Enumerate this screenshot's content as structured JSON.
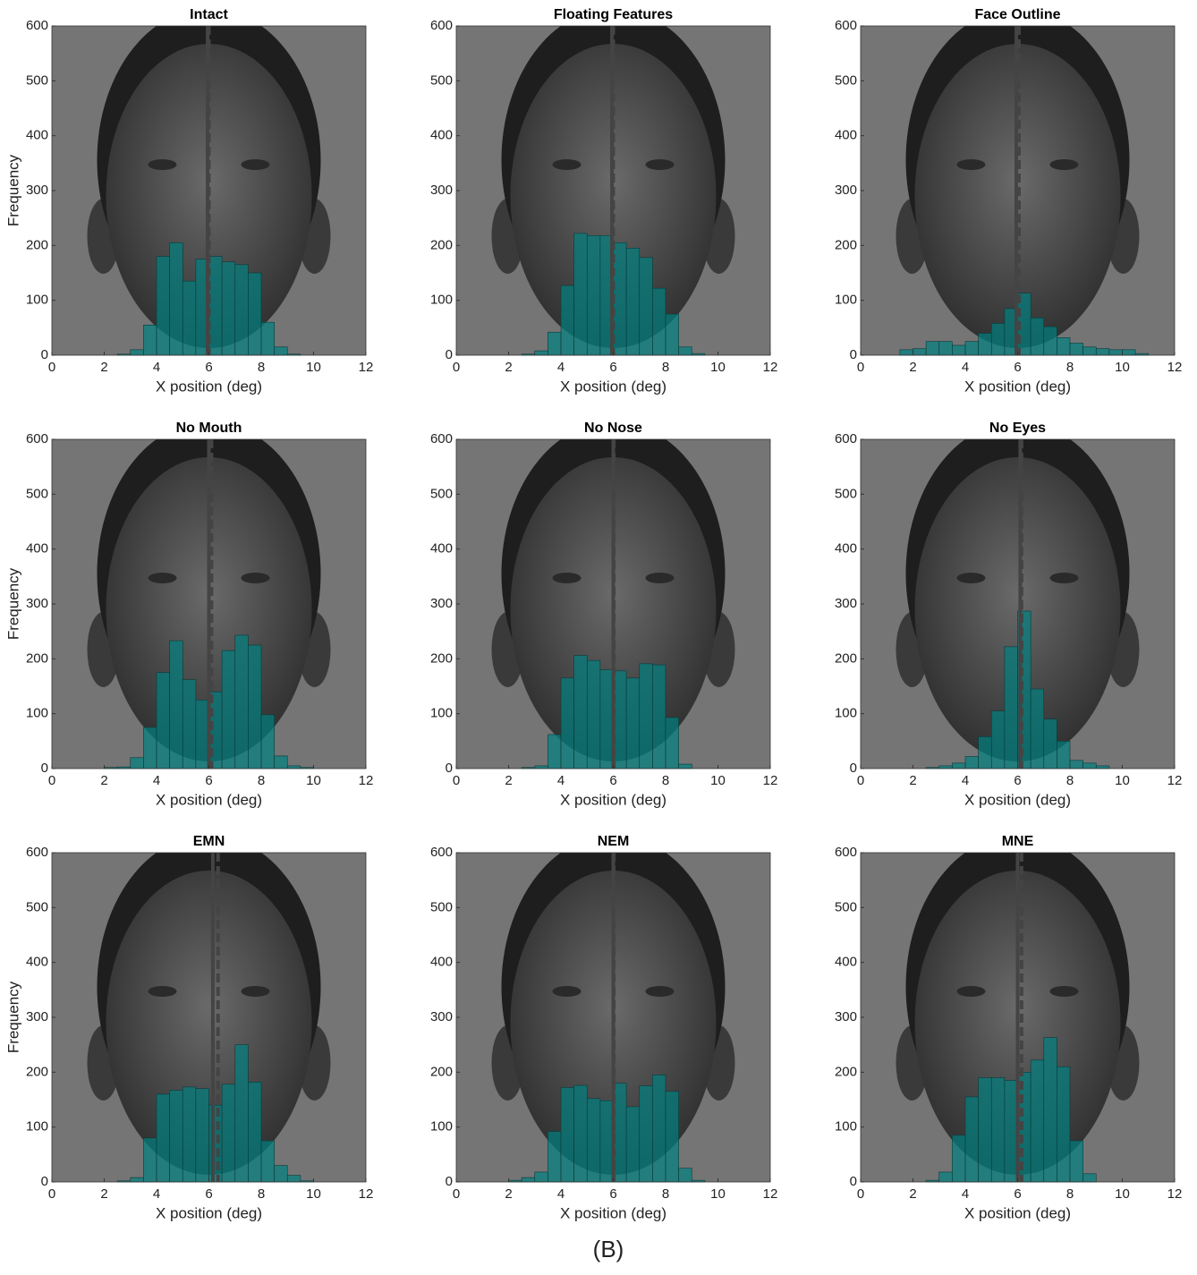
{
  "caption": "(B)",
  "chart_data": [
    {
      "type": "histogram",
      "title": "Intact",
      "xlabel": "X position (deg)",
      "ylabel": "Frequency",
      "color": "#008080",
      "bins": [
        0,
        0.5,
        1,
        1.5,
        2,
        2.5,
        3,
        3.5,
        4,
        4.5,
        5,
        5.5,
        6,
        6.5,
        7,
        7.5,
        8,
        8.5,
        9,
        9.5,
        10,
        10.5,
        11,
        11.5,
        12
      ],
      "values": [
        0,
        0,
        0,
        0,
        0,
        2,
        10,
        55,
        180,
        205,
        135,
        175,
        180,
        170,
        165,
        150,
        60,
        15,
        2,
        0,
        0,
        0,
        0,
        0
      ],
      "xlim": [
        0,
        12
      ],
      "ylim": [
        0,
        600
      ],
      "xticks": [
        0,
        2,
        4,
        6,
        8,
        10,
        12
      ],
      "yticks": [
        0,
        100,
        200,
        300,
        400,
        500,
        600
      ],
      "vlines": [
        {
          "x": 5.95,
          "style": "solid"
        },
        {
          "x": 6.0,
          "style": "dashed"
        }
      ]
    },
    {
      "type": "histogram",
      "title": "Floating Features",
      "xlabel": "X position (deg)",
      "color": "#008080",
      "bins": [
        0,
        0.5,
        1,
        1.5,
        2,
        2.5,
        3,
        3.5,
        4,
        4.5,
        5,
        5.5,
        6,
        6.5,
        7,
        7.5,
        8,
        8.5,
        9,
        9.5,
        10,
        10.5,
        11,
        11.5,
        12
      ],
      "values": [
        0,
        0,
        0,
        0,
        0,
        2,
        8,
        42,
        127,
        222,
        218,
        218,
        205,
        195,
        178,
        122,
        75,
        15,
        3,
        0,
        0,
        0,
        0,
        0
      ],
      "xlim": [
        0,
        12
      ],
      "ylim": [
        0,
        600
      ],
      "xticks": [
        0,
        2,
        4,
        6,
        8,
        10,
        12
      ],
      "yticks": [
        0,
        100,
        200,
        300,
        400,
        500,
        600
      ],
      "vlines": [
        {
          "x": 5.95,
          "style": "solid"
        },
        {
          "x": 6.0,
          "style": "dashed"
        }
      ]
    },
    {
      "type": "histogram",
      "title": "Face Outline",
      "xlabel": "X position (deg)",
      "color": "#008080",
      "bins": [
        0,
        0.5,
        1,
        1.5,
        2,
        2.5,
        3,
        3.5,
        4,
        4.5,
        5,
        5.5,
        6,
        6.5,
        7,
        7.5,
        8,
        8.5,
        9,
        9.5,
        10,
        10.5,
        11,
        11.5,
        12
      ],
      "values": [
        0,
        0,
        0,
        10,
        12,
        25,
        25,
        18,
        25,
        40,
        58,
        85,
        113,
        68,
        52,
        32,
        22,
        15,
        12,
        10,
        10,
        3,
        0,
        0
      ],
      "xlim": [
        0,
        12
      ],
      "ylim": [
        0,
        600
      ],
      "xticks": [
        0,
        2,
        4,
        6,
        8,
        10,
        12
      ],
      "yticks": [
        0,
        100,
        200,
        300,
        400,
        500,
        600
      ],
      "vlines": [
        {
          "x": 5.95,
          "style": "solid"
        },
        {
          "x": 6.05,
          "style": "dashed"
        }
      ]
    },
    {
      "type": "histogram",
      "title": "No Mouth",
      "xlabel": "X position (deg)",
      "ylabel": "Frequency",
      "color": "#008080",
      "bins": [
        0,
        0.5,
        1,
        1.5,
        2,
        2.5,
        3,
        3.5,
        4,
        4.5,
        5,
        5.5,
        6,
        6.5,
        7,
        7.5,
        8,
        8.5,
        9,
        9.5,
        10,
        10.5,
        11,
        11.5,
        12
      ],
      "values": [
        0,
        0,
        0,
        0,
        2,
        3,
        20,
        75,
        175,
        233,
        162,
        125,
        140,
        215,
        243,
        225,
        98,
        23,
        5,
        2,
        0,
        0,
        0,
        0
      ],
      "xlim": [
        0,
        12
      ],
      "ylim": [
        0,
        600
      ],
      "xticks": [
        0,
        2,
        4,
        6,
        8,
        10,
        12
      ],
      "yticks": [
        0,
        100,
        200,
        300,
        400,
        500,
        600
      ],
      "vlines": [
        {
          "x": 6.0,
          "style": "solid"
        },
        {
          "x": 6.1,
          "style": "dashed"
        }
      ]
    },
    {
      "type": "histogram",
      "title": "No Nose",
      "xlabel": "X position (deg)",
      "color": "#008080",
      "bins": [
        0,
        0.5,
        1,
        1.5,
        2,
        2.5,
        3,
        3.5,
        4,
        4.5,
        5,
        5.5,
        6,
        6.5,
        7,
        7.5,
        8,
        8.5,
        9,
        9.5,
        10,
        10.5,
        11,
        11.5,
        12
      ],
      "values": [
        0,
        0,
        0,
        0,
        0,
        2,
        5,
        62,
        165,
        206,
        197,
        180,
        178,
        165,
        191,
        189,
        93,
        8,
        0,
        0,
        0,
        0,
        0,
        0
      ],
      "xlim": [
        0,
        12
      ],
      "ylim": [
        0,
        600
      ],
      "xticks": [
        0,
        2,
        4,
        6,
        8,
        10,
        12
      ],
      "yticks": [
        0,
        100,
        200,
        300,
        400,
        500,
        600
      ],
      "vlines": [
        {
          "x": 6.0,
          "style": "solid"
        },
        {
          "x": 6.02,
          "style": "dashed"
        }
      ]
    },
    {
      "type": "histogram",
      "title": "No Eyes",
      "xlabel": "X position (deg)",
      "color": "#008080",
      "bins": [
        0,
        0.5,
        1,
        1.5,
        2,
        2.5,
        3,
        3.5,
        4,
        4.5,
        5,
        5.5,
        6,
        6.5,
        7,
        7.5,
        8,
        8.5,
        9,
        9.5,
        10,
        10.5,
        11,
        11.5,
        12
      ],
      "values": [
        0,
        0,
        0,
        0,
        0,
        2,
        5,
        10,
        22,
        58,
        105,
        222,
        287,
        145,
        90,
        50,
        15,
        10,
        5,
        0,
        0,
        0,
        0,
        0
      ],
      "xlim": [
        0,
        12
      ],
      "ylim": [
        0,
        600
      ],
      "xticks": [
        0,
        2,
        4,
        6,
        8,
        10,
        12
      ],
      "yticks": [
        0,
        100,
        200,
        300,
        400,
        500,
        600
      ],
      "vlines": [
        {
          "x": 6.1,
          "style": "solid"
        },
        {
          "x": 6.15,
          "style": "dashed"
        }
      ]
    },
    {
      "type": "histogram",
      "title": "EMN",
      "xlabel": "X position (deg)",
      "ylabel": "Frequency",
      "color": "#008080",
      "bins": [
        0,
        0.5,
        1,
        1.5,
        2,
        2.5,
        3,
        3.5,
        4,
        4.5,
        5,
        5.5,
        6,
        6.5,
        7,
        7.5,
        8,
        8.5,
        9,
        9.5,
        10,
        10.5,
        11,
        11.5,
        12
      ],
      "values": [
        0,
        0,
        0,
        0,
        0,
        2,
        8,
        80,
        160,
        167,
        173,
        170,
        140,
        178,
        250,
        182,
        75,
        30,
        12,
        2,
        0,
        0,
        0,
        0
      ],
      "xlim": [
        0,
        12
      ],
      "ylim": [
        0,
        600
      ],
      "xticks": [
        0,
        2,
        4,
        6,
        8,
        10,
        12
      ],
      "yticks": [
        0,
        100,
        200,
        300,
        400,
        500,
        600
      ],
      "vlines": [
        {
          "x": 6.15,
          "style": "solid"
        },
        {
          "x": 6.35,
          "style": "dashed"
        }
      ]
    },
    {
      "type": "histogram",
      "title": "NEM",
      "xlabel": "X position (deg)",
      "color": "#008080",
      "bins": [
        0,
        0.5,
        1,
        1.5,
        2,
        2.5,
        3,
        3.5,
        4,
        4.5,
        5,
        5.5,
        6,
        6.5,
        7,
        7.5,
        8,
        8.5,
        9,
        9.5,
        10,
        10.5,
        11,
        11.5,
        12
      ],
      "values": [
        0,
        0,
        0,
        0,
        3,
        8,
        18,
        92,
        172,
        176,
        152,
        148,
        180,
        137,
        175,
        195,
        165,
        25,
        3,
        0,
        0,
        0,
        0,
        0
      ],
      "xlim": [
        0,
        12
      ],
      "ylim": [
        0,
        600
      ],
      "xticks": [
        0,
        2,
        4,
        6,
        8,
        10,
        12
      ],
      "yticks": [
        0,
        100,
        200,
        300,
        400,
        500,
        600
      ],
      "vlines": [
        {
          "x": 6.0,
          "style": "solid"
        },
        {
          "x": 6.02,
          "style": "dashed"
        }
      ]
    },
    {
      "type": "histogram",
      "title": "MNE",
      "xlabel": "X position (deg)",
      "color": "#008080",
      "bins": [
        0,
        0.5,
        1,
        1.5,
        2,
        2.5,
        3,
        3.5,
        4,
        4.5,
        5,
        5.5,
        6,
        6.5,
        7,
        7.5,
        8,
        8.5,
        9,
        9.5,
        10,
        10.5,
        11,
        11.5,
        12
      ],
      "values": [
        0,
        0,
        0,
        0,
        0,
        3,
        18,
        85,
        155,
        190,
        190,
        185,
        200,
        222,
        263,
        210,
        75,
        15,
        0,
        0,
        0,
        0,
        0,
        0
      ],
      "xlim": [
        0,
        12
      ],
      "ylim": [
        0,
        600
      ],
      "xticks": [
        0,
        2,
        4,
        6,
        8,
        10,
        12
      ],
      "yticks": [
        0,
        100,
        200,
        300,
        400,
        500,
        600
      ],
      "vlines": [
        {
          "x": 6.0,
          "style": "solid"
        },
        {
          "x": 6.15,
          "style": "dashed"
        }
      ]
    }
  ]
}
